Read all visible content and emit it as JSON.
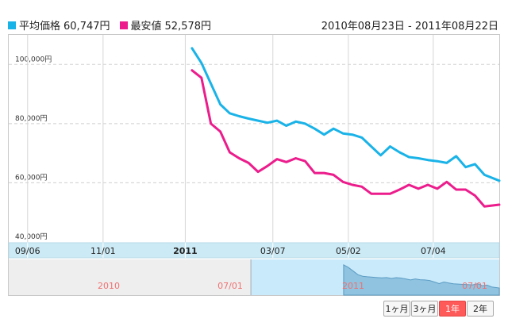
{
  "legend": {
    "avg": {
      "label": "平均価格",
      "value": "60,747円",
      "color": "#1ab3e8"
    },
    "min": {
      "label": "最安値",
      "value": "52,578円",
      "color": "#ec1c8c"
    }
  },
  "date_range": "2010年08月23日 - 2011年08月22日",
  "range_buttons": [
    {
      "label": "1ヶ月",
      "active": false
    },
    {
      "label": "3ヶ月",
      "active": false
    },
    {
      "label": "1年",
      "active": true
    },
    {
      "label": "2年",
      "active": false
    }
  ],
  "navigator": {
    "labels": [
      "2010",
      "07/01",
      "2011",
      "07/01"
    ],
    "label_color": "#f07070"
  },
  "chart_data": {
    "type": "line",
    "ylim": [
      40000,
      110000
    ],
    "yticks": [
      40000,
      60000,
      80000,
      100000
    ],
    "ytick_labels": [
      "40,000円",
      "60,000円",
      "80,000円",
      "100,000円"
    ],
    "xticks": [
      "09/06",
      "11/01",
      "2011",
      "03/07",
      "05/02",
      "07/04"
    ],
    "xtick_positions": [
      "2010-09-06",
      "2010-11-01",
      "2011-01-01",
      "2011-03-07",
      "2011-05-02",
      "2011-07-04"
    ],
    "xlim": [
      "2010-08-23",
      "2011-08-22"
    ],
    "grid": true,
    "series": [
      {
        "name": "平均価格",
        "color": "#1ab3e8",
        "points": [
          [
            "2011-01-06",
            105500
          ],
          [
            "2011-01-13",
            100500
          ],
          [
            "2011-01-20",
            93500
          ],
          [
            "2011-01-27",
            86500
          ],
          [
            "2011-02-03",
            83500
          ],
          [
            "2011-02-10",
            82500
          ],
          [
            "2011-02-17",
            81700
          ],
          [
            "2011-02-24",
            81000
          ],
          [
            "2011-03-03",
            80300
          ],
          [
            "2011-03-10",
            81000
          ],
          [
            "2011-03-17",
            79300
          ],
          [
            "2011-03-24",
            80700
          ],
          [
            "2011-03-31",
            80000
          ],
          [
            "2011-04-07",
            78300
          ],
          [
            "2011-04-14",
            76300
          ],
          [
            "2011-04-21",
            78300
          ],
          [
            "2011-04-28",
            76700
          ],
          [
            "2011-05-05",
            76300
          ],
          [
            "2011-05-12",
            75300
          ],
          [
            "2011-05-19",
            72300
          ],
          [
            "2011-05-26",
            69300
          ],
          [
            "2011-06-02",
            72300
          ],
          [
            "2011-06-09",
            70300
          ],
          [
            "2011-06-16",
            68700
          ],
          [
            "2011-06-23",
            68300
          ],
          [
            "2011-06-30",
            67700
          ],
          [
            "2011-07-07",
            67300
          ],
          [
            "2011-07-14",
            66700
          ],
          [
            "2011-07-21",
            69000
          ],
          [
            "2011-07-28",
            65300
          ],
          [
            "2011-08-04",
            66300
          ],
          [
            "2011-08-11",
            62700
          ],
          [
            "2011-08-22",
            60700
          ]
        ]
      },
      {
        "name": "最安値",
        "color": "#ec1c8c",
        "points": [
          [
            "2011-01-06",
            98000
          ],
          [
            "2011-01-13",
            95500
          ],
          [
            "2011-01-20",
            80000
          ],
          [
            "2011-01-27",
            77300
          ],
          [
            "2011-02-03",
            70300
          ],
          [
            "2011-02-10",
            68300
          ],
          [
            "2011-02-17",
            66700
          ],
          [
            "2011-02-24",
            63700
          ],
          [
            "2011-03-03",
            65700
          ],
          [
            "2011-03-10",
            68000
          ],
          [
            "2011-03-17",
            67000
          ],
          [
            "2011-03-24",
            68300
          ],
          [
            "2011-03-31",
            67300
          ],
          [
            "2011-04-07",
            63300
          ],
          [
            "2011-04-14",
            63300
          ],
          [
            "2011-04-21",
            62700
          ],
          [
            "2011-04-28",
            60300
          ],
          [
            "2011-05-05",
            59300
          ],
          [
            "2011-05-12",
            58700
          ],
          [
            "2011-05-19",
            56300
          ],
          [
            "2011-05-26",
            56300
          ],
          [
            "2011-06-02",
            56300
          ],
          [
            "2011-06-09",
            57700
          ],
          [
            "2011-06-16",
            59300
          ],
          [
            "2011-06-23",
            58000
          ],
          [
            "2011-06-30",
            59300
          ],
          [
            "2011-07-07",
            58000
          ],
          [
            "2011-07-14",
            60300
          ],
          [
            "2011-07-21",
            57700
          ],
          [
            "2011-07-28",
            57700
          ],
          [
            "2011-08-04",
            55700
          ],
          [
            "2011-08-11",
            52000
          ],
          [
            "2011-08-22",
            52600
          ]
        ]
      }
    ]
  }
}
